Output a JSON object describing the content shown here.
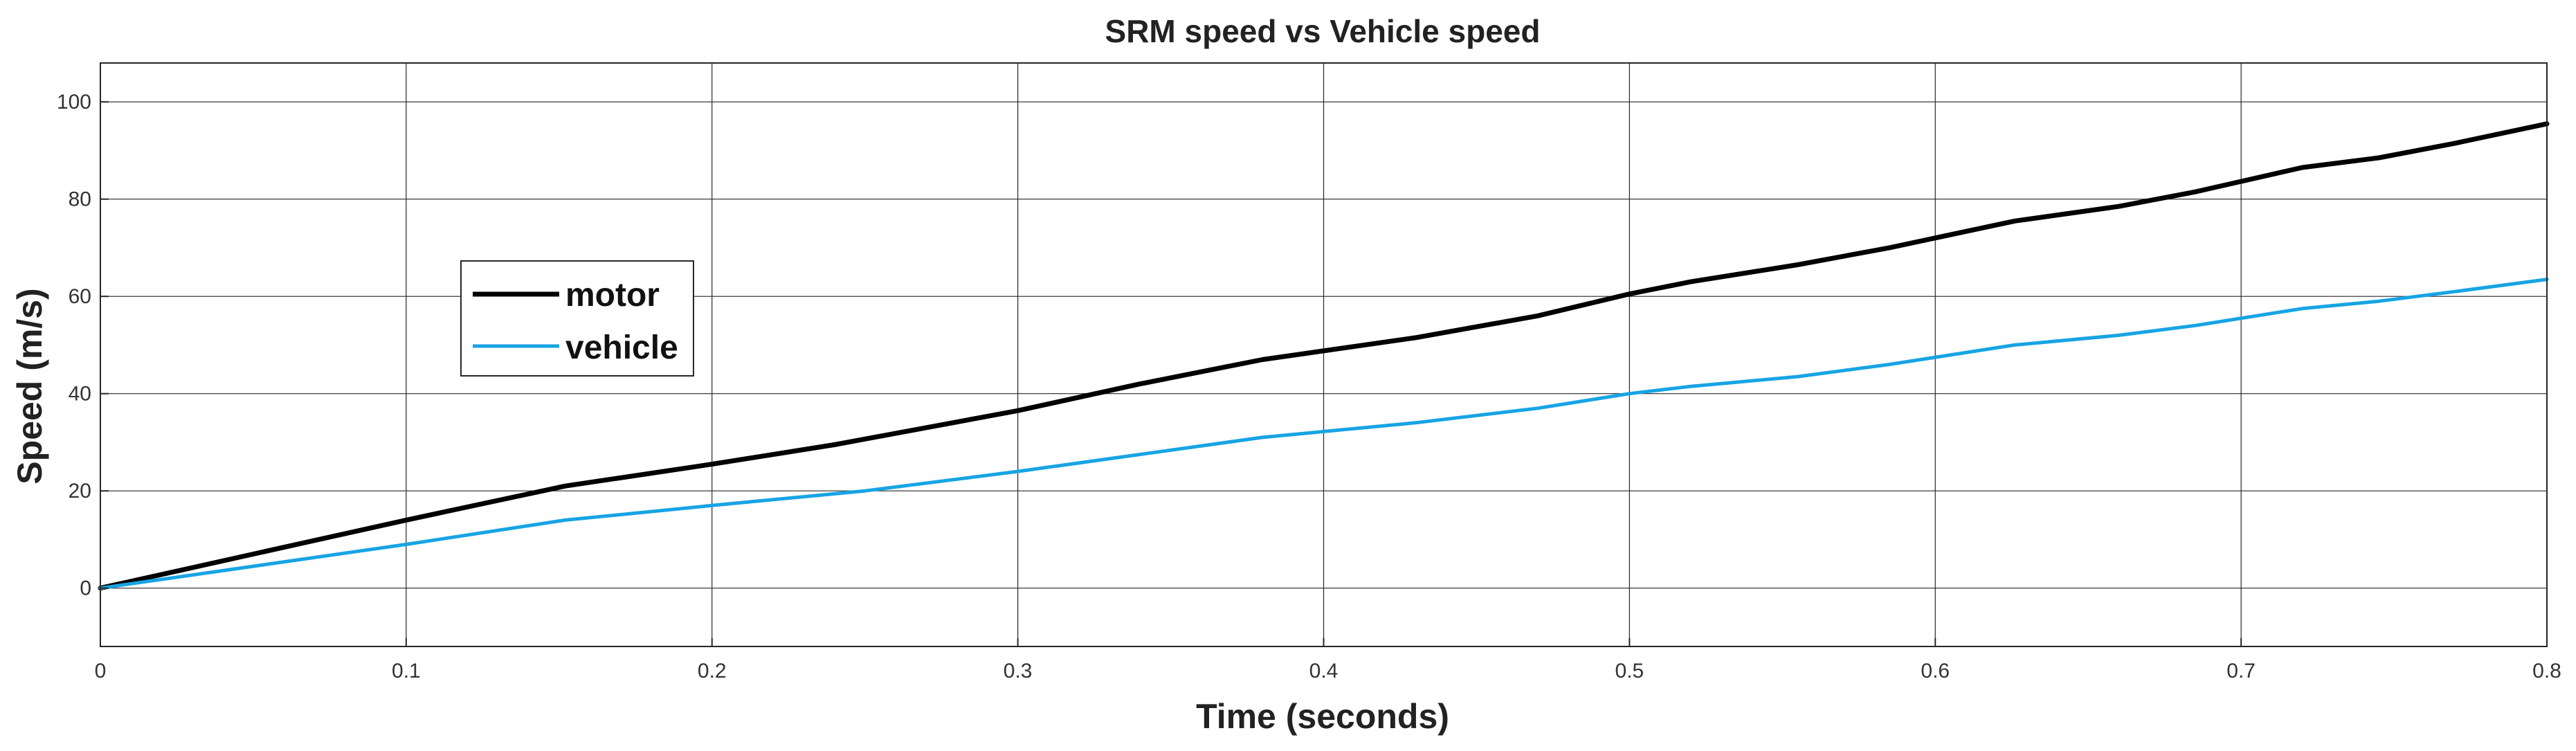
{
  "chart_data": {
    "type": "line",
    "title": "SRM speed vs Vehicle speed",
    "xlabel": "Time (seconds)",
    "ylabel": "Speed (m/s)",
    "xlim": [
      0,
      0.8
    ],
    "ylim": [
      -12,
      108
    ],
    "xticks": [
      0,
      0.1,
      0.2,
      0.3,
      0.4,
      0.5,
      0.6,
      0.7,
      0.8
    ],
    "yticks": [
      0,
      20,
      40,
      60,
      80,
      100
    ],
    "xtick_labels": [
      "0",
      "0.1",
      "0.2",
      "0.3",
      "0.4",
      "0.5",
      "0.6",
      "0.7",
      "0.8"
    ],
    "ytick_labels": [
      "0",
      "20",
      "40",
      "60",
      "80",
      "100"
    ],
    "grid": true,
    "legend_position": "center-left",
    "series": [
      {
        "name": "motor",
        "color": "#000000",
        "x": [
          0,
          0.05,
          0.1,
          0.152,
          0.2,
          0.24,
          0.3,
          0.34,
          0.38,
          0.43,
          0.47,
          0.5,
          0.52,
          0.555,
          0.585,
          0.626,
          0.66,
          0.685,
          0.72,
          0.745,
          0.77,
          0.8
        ],
        "y": [
          0,
          7,
          14,
          21,
          25.5,
          29.5,
          36.5,
          42,
          47,
          51.5,
          56,
          60.5,
          63,
          66.5,
          70,
          75.5,
          78.5,
          81.5,
          86.5,
          88.5,
          91.5,
          95.5
        ]
      },
      {
        "name": "vehicle",
        "color": "#17a4e4",
        "x": [
          0,
          0.05,
          0.1,
          0.152,
          0.2,
          0.25,
          0.3,
          0.34,
          0.38,
          0.43,
          0.47,
          0.5,
          0.52,
          0.555,
          0.585,
          0.626,
          0.66,
          0.685,
          0.72,
          0.745,
          0.77,
          0.8
        ],
        "y": [
          0,
          4.5,
          9,
          14,
          17,
          20,
          24,
          27.5,
          31,
          34,
          37,
          40,
          41.5,
          43.5,
          46,
          50,
          52,
          54,
          57.5,
          59,
          61,
          63.5
        ]
      }
    ]
  }
}
